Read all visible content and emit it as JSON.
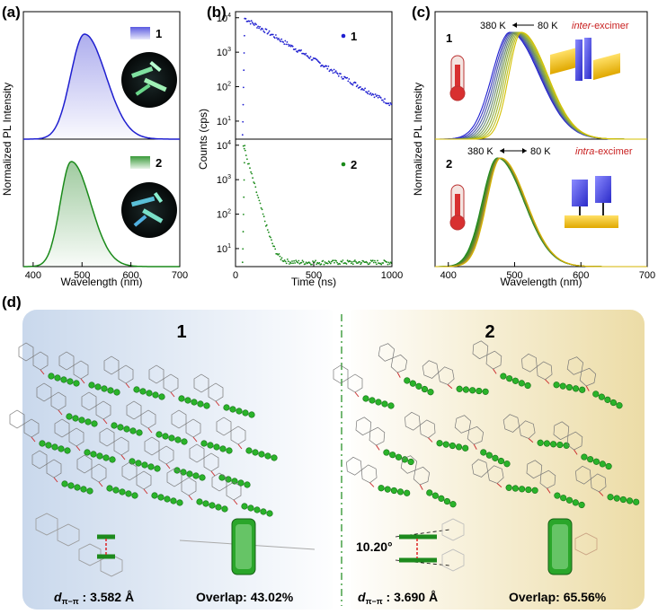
{
  "panel_labels": {
    "a": "(a)",
    "b": "(b)",
    "c": "(c)",
    "d": "(d)"
  },
  "colors": {
    "c1": "#1f1fd0",
    "c2": "#1a8a1a",
    "red": "#c81e1e",
    "hot": "#d4b400"
  },
  "panel_d": {
    "comp1_label": "1",
    "comp2_label": "2",
    "d1": "3.582 Å",
    "d2": "3.690 Å",
    "d_prefix": "d",
    "d_sub": "π−π",
    "d_colon": " : ",
    "overlap1": "Overlap: 43.02%",
    "overlap2": "Overlap: 65.56%",
    "angle": "10.20°"
  },
  "chart_data": [
    {
      "id": "a",
      "type": "line",
      "xlabel": "Wavelength (nm)",
      "ylabel": "Normalized PL  Intensity",
      "xlim": [
        380,
        700
      ],
      "xticks": [
        "400",
        "500",
        "600",
        "700"
      ],
      "series": [
        {
          "name": "1",
          "peak_nm": 505,
          "width_left": 40,
          "width_right": 62,
          "color": "#1f1fd0"
        },
        {
          "name": "2",
          "peak_nm": 478,
          "width_left": 32,
          "width_right": 56,
          "color": "#1a8a1a"
        }
      ]
    },
    {
      "id": "b",
      "type": "scatter",
      "xlabel": "Time (ns)",
      "ylabel": "Counts (cps)",
      "xlim": [
        0,
        1000
      ],
      "ylim_log": [
        3,
        15000
      ],
      "xticks": [
        "0",
        "500",
        "1000"
      ],
      "yticks": [
        "10^1",
        "10^2",
        "10^3",
        "10^4"
      ],
      "series": [
        {
          "name": "1",
          "peak_time_ns": 60,
          "peak_counts": 9500,
          "decay_ns": 160,
          "background": 4,
          "color": "#1f1fd0"
        },
        {
          "name": "2",
          "peak_time_ns": 50,
          "peak_counts": 9800,
          "decay_ns": 27,
          "background": 4,
          "color": "#1a8a1a"
        }
      ]
    },
    {
      "id": "c",
      "type": "line",
      "xlabel": "Wavelength (nm)",
      "ylabel": "Normalized PL  Intensity",
      "xlim": [
        380,
        700
      ],
      "xticks": [
        "400",
        "500",
        "600",
        "700"
      ],
      "temperatures_K": [
        380,
        80
      ],
      "panels": [
        {
          "name": "1",
          "note": "inter-excimer",
          "note_em": "inter",
          "note_rest": "-excimer",
          "temp_text_hot": "380 K",
          "temp_text_cold": "80 K",
          "peak_min": 493,
          "peak_max": 510,
          "curves": 10
        },
        {
          "name": "2",
          "note": "intra-excimer",
          "note_em": "intra",
          "note_rest": "-excimer",
          "temp_text_hot": "380 K",
          "temp_text_cold": "80 K",
          "peak_min": 474,
          "peak_max": 479,
          "curves": 10
        }
      ]
    }
  ]
}
